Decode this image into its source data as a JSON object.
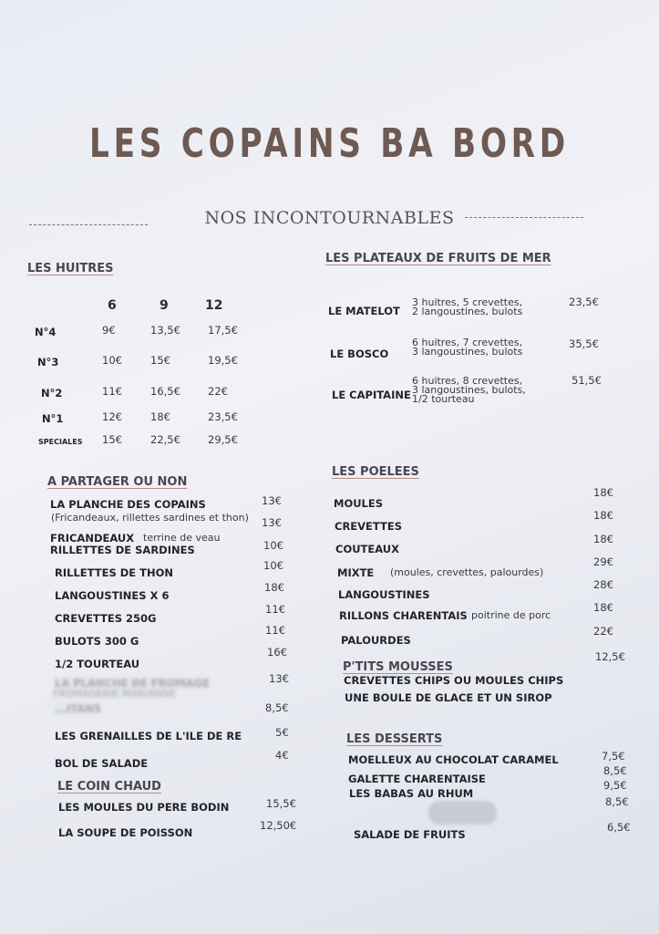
{
  "header": {
    "title": "LES COPAINS BA BORD",
    "subtitle": "NOS INCONTOURNABLES"
  },
  "huitres": {
    "title": "LES HUITRES",
    "sizes": [
      "6",
      "9",
      "12"
    ],
    "rows": [
      {
        "name": "N°4",
        "prices": [
          "9€",
          "13,5€",
          "17,5€"
        ]
      },
      {
        "name": "N°3",
        "prices": [
          "10€",
          "15€",
          "19,5€"
        ]
      },
      {
        "name": "N°2",
        "prices": [
          "11€",
          "16,5€",
          "22€"
        ]
      },
      {
        "name": "N°1",
        "prices": [
          "12€",
          "18€",
          "23,5€"
        ]
      },
      {
        "name": "SPECIALES",
        "prices": [
          "15€",
          "22,5€",
          "29,5€"
        ]
      }
    ]
  },
  "plateaux": {
    "title": "LES PLATEAUX DE FRUITS DE MER",
    "items": [
      {
        "name": "LE MATELOT",
        "desc": [
          "3 huitres, 5 crevettes,",
          "2 langoustines,  bulots"
        ],
        "price": "23,5€"
      },
      {
        "name": "LE BOSCO",
        "desc": [
          "6 huitres, 7 crevettes,",
          "3 langoustines, bulots"
        ],
        "price": "35,5€"
      },
      {
        "name": "LE CAPITAINE",
        "desc": [
          "6 huitres, 8 crevettes,",
          "3 langoustines, bulots,",
          "1/2 tourteau"
        ],
        "price": "51,5€"
      }
    ]
  },
  "partager": {
    "title": "A PARTAGER OU NON",
    "items": [
      {
        "name": "LA PLANCHE DES COPAINS",
        "note": "(Fricandeaux, rillettes sardines et thon)",
        "price": "13€"
      },
      {
        "name": "FRICANDEAUX",
        "note": "terrine de veau",
        "price": "13€"
      },
      {
        "name": "RILLETTES DE SARDINES",
        "price": "10€"
      },
      {
        "name": "RILLETTES DE THON",
        "price": "10€"
      },
      {
        "name": "LANGOUSTINES X 6",
        "price": "18€"
      },
      {
        "name": "CREVETTES 250G",
        "price": "11€"
      },
      {
        "name": "BULOTS 300 G",
        "price": "11€"
      },
      {
        "name": "1/2 TOURTEAU",
        "price": "16€"
      },
      {
        "name": "LA PLANCHE DE FROMAGE",
        "note": "FROMAGERIE MARIANNE",
        "price": "13€",
        "redacted": true
      },
      {
        "name": "...ITANS",
        "price": "8,5€",
        "redacted": true
      },
      {
        "name": "LES GRENAILLES DE L'ILE DE RE",
        "price": "5€"
      },
      {
        "name": "BOL DE SALADE",
        "price": "4€"
      }
    ]
  },
  "chaud": {
    "title": "LE COIN CHAUD",
    "items": [
      {
        "name": "LES MOULES DU PERE BODIN",
        "price": "15,5€"
      },
      {
        "name": "LA SOUPE DE POISSON",
        "price": "12,50€"
      }
    ]
  },
  "poelees": {
    "title": "LES POELEES",
    "items": [
      {
        "name": "MOULES",
        "price": "18€"
      },
      {
        "name": "CREVETTES",
        "price": "18€"
      },
      {
        "name": "COUTEAUX",
        "price": "18€"
      },
      {
        "name": "MIXTE",
        "note": "(moules, crevettes, palourdes)",
        "price": "29€"
      },
      {
        "name": "LANGOUSTINES",
        "price": "28€"
      },
      {
        "name": "RILLONS CHARENTAIS",
        "note": "poitrine de porc",
        "price": "18€"
      },
      {
        "name": "PALOURDES",
        "price": "22€"
      }
    ]
  },
  "mousses": {
    "title": "P'TITS MOUSSES",
    "items": [
      {
        "name": "CREVETTES CHIPS OU MOULES CHIPS",
        "price": "12,5€"
      },
      {
        "name": "UNE BOULE DE GLACE ET UN SIROP",
        "price": ""
      }
    ]
  },
  "desserts": {
    "title": "LES DESSERTS",
    "items": [
      {
        "name": "MOELLEUX AU CHOCOLAT CARAMEL",
        "price": "7,5€"
      },
      {
        "name": "GALETTE CHARENTAISE",
        "price": "8,5€"
      },
      {
        "name": "LES BABAS AU RHUM",
        "price": "9,5€"
      },
      {
        "name": "",
        "price": "8,5€",
        "redacted": true
      },
      {
        "name": "SALADE DE FRUITS",
        "price": "6,5€"
      }
    ]
  }
}
